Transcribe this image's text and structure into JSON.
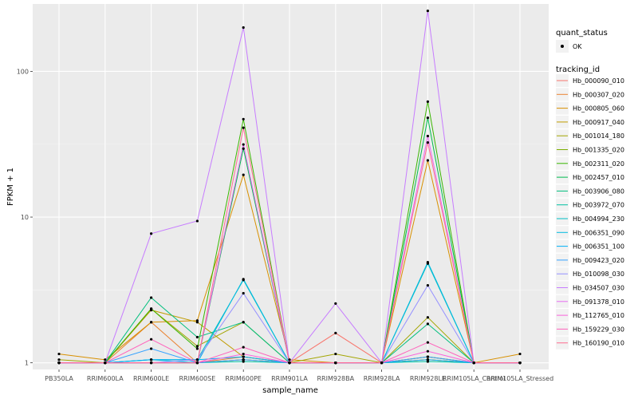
{
  "chart_data": {
    "type": "line",
    "xlabel": "sample_name",
    "ylabel": "FPKM + 1",
    "y_scale": "log10",
    "ylim": [
      0.9,
      290
    ],
    "y_ticks": [
      1,
      10,
      100
    ],
    "y_tick_labels": [
      "1",
      "10",
      "100"
    ],
    "categories": [
      "PB350LA",
      "RRIM600LA",
      "RRIM600LE",
      "RRIM600SE",
      "RRIM600PE",
      "RRIM901LA",
      "RRIM928BA",
      "RRIM928LA",
      "RRIM928LE",
      "RRIM105LA_Control",
      "RRIM105LA_Stressed"
    ],
    "grid": true,
    "legend_position": "right",
    "legend_point_title": "quant_status",
    "legend_point_label": "OK",
    "legend_color_title": "tracking_id",
    "series": [
      {
        "name": "Hb_000090_010",
        "color": "#F8766D",
        "values": [
          1.0,
          1.0,
          1.0,
          1.0,
          1.05,
          1.0,
          1.6,
          1.0,
          1.1,
          1.0,
          1.0
        ]
      },
      {
        "name": "Hb_000307_020",
        "color": "#EA8331",
        "values": [
          1.0,
          1.0,
          1.9,
          1.0,
          1.1,
          1.0,
          1.0,
          1.0,
          1.05,
          1.0,
          1.0
        ]
      },
      {
        "name": "Hb_000805_060",
        "color": "#D89000",
        "values": [
          1.15,
          1.05,
          1.9,
          1.95,
          19.5,
          1.05,
          1.0,
          1.0,
          24.5,
          1.0,
          1.15
        ]
      },
      {
        "name": "Hb_000917_040",
        "color": "#C09B00",
        "values": [
          1.0,
          1.0,
          2.3,
          1.9,
          1.1,
          1.0,
          1.0,
          1.0,
          1.05,
          1.0,
          1.0
        ]
      },
      {
        "name": "Hb_001014_180",
        "color": "#A3A500",
        "values": [
          1.05,
          1.0,
          2.35,
          1.3,
          1.9,
          1.0,
          1.15,
          1.0,
          2.05,
          1.0,
          1.0
        ]
      },
      {
        "name": "Hb_001335_020",
        "color": "#7CAE00",
        "values": [
          1.0,
          1.0,
          1.0,
          1.0,
          1.05,
          1.0,
          1.0,
          1.0,
          1.1,
          1.0,
          1.0
        ]
      },
      {
        "name": "Hb_002311_020",
        "color": "#39B600",
        "values": [
          1.0,
          1.0,
          2.35,
          1.25,
          47.0,
          1.0,
          1.0,
          1.0,
          62.0,
          1.0,
          1.0
        ]
      },
      {
        "name": "Hb_002457_010",
        "color": "#00BB4E",
        "values": [
          1.0,
          1.0,
          1.0,
          1.0,
          29.5,
          1.0,
          1.0,
          1.0,
          48.0,
          1.0,
          1.0
        ]
      },
      {
        "name": "Hb_003906_080",
        "color": "#00BF7D",
        "values": [
          1.0,
          1.0,
          2.8,
          1.5,
          1.9,
          1.0,
          1.0,
          1.0,
          1.85,
          1.0,
          1.0
        ]
      },
      {
        "name": "Hb_003972_070",
        "color": "#00C1A3",
        "values": [
          1.0,
          1.0,
          1.0,
          1.0,
          1.02,
          1.0,
          1.0,
          1.0,
          1.02,
          1.0,
          1.0
        ]
      },
      {
        "name": "Hb_004994_230",
        "color": "#00BFC4",
        "values": [
          1.0,
          1.0,
          1.05,
          1.05,
          3.7,
          1.0,
          1.0,
          1.0,
          4.8,
          1.0,
          1.0
        ]
      },
      {
        "name": "Hb_006351_090",
        "color": "#00BAE0",
        "values": [
          1.0,
          1.0,
          1.05,
          1.0,
          3.75,
          1.0,
          1.0,
          1.0,
          4.9,
          1.0,
          1.0
        ]
      },
      {
        "name": "Hb_006351_100",
        "color": "#00B0F6",
        "values": [
          1.0,
          1.0,
          1.05,
          1.05,
          1.1,
          1.0,
          1.0,
          1.0,
          1.05,
          1.0,
          1.0
        ]
      },
      {
        "name": "Hb_009423_020",
        "color": "#35A2FF",
        "values": [
          1.0,
          1.0,
          1.25,
          1.0,
          1.05,
          1.0,
          1.0,
          1.0,
          1.1,
          1.0,
          1.0
        ]
      },
      {
        "name": "Hb_010098_030",
        "color": "#9590FF",
        "values": [
          1.0,
          1.0,
          1.0,
          1.05,
          3.0,
          1.0,
          1.0,
          1.0,
          3.4,
          1.0,
          1.0
        ]
      },
      {
        "name": "Hb_034507_030",
        "color": "#C77CFF",
        "values": [
          1.0,
          1.0,
          7.7,
          9.4,
          200.0,
          1.0,
          2.55,
          1.0,
          260.0,
          1.0,
          1.0
        ]
      },
      {
        "name": "Hb_091378_010",
        "color": "#E76BF3",
        "values": [
          1.0,
          1.0,
          1.0,
          1.0,
          31.5,
          1.0,
          1.0,
          1.0,
          36.0,
          1.0,
          1.0
        ]
      },
      {
        "name": "Hb_112765_010",
        "color": "#FA62DB",
        "values": [
          1.0,
          1.0,
          1.0,
          1.0,
          1.15,
          1.0,
          1.0,
          1.0,
          1.2,
          1.0,
          1.0
        ]
      },
      {
        "name": "Hb_159229_030",
        "color": "#FF62BC",
        "values": [
          1.0,
          1.0,
          1.45,
          1.0,
          1.28,
          1.0,
          1.0,
          1.0,
          1.38,
          1.0,
          1.0
        ]
      },
      {
        "name": "Hb_160190_010",
        "color": "#FF6C91",
        "values": [
          1.0,
          1.0,
          1.0,
          1.0,
          41.0,
          1.0,
          1.0,
          1.0,
          32.5,
          1.0,
          1.0
        ]
      }
    ]
  }
}
